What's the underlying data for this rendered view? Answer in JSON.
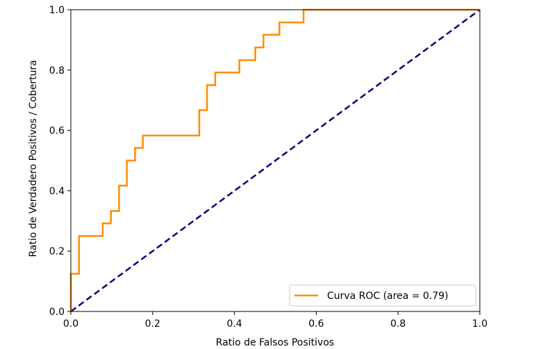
{
  "chart_data": {
    "type": "line",
    "xlabel": "Ratio de Falsos Positivos",
    "ylabel": "Ratio de Verdadero Positivos / Cobertura",
    "xlim": [
      0.0,
      1.0
    ],
    "ylim": [
      0.0,
      1.0
    ],
    "x_ticks": [
      "0.0",
      "0.2",
      "0.4",
      "0.6",
      "0.8",
      "1.0"
    ],
    "y_ticks": [
      "0.0",
      "0.2",
      "0.4",
      "0.6",
      "0.8",
      "1.0"
    ],
    "grid": false,
    "legend_position": "lower right",
    "series": [
      {
        "name": "Curva ROC (area = 0.79)",
        "color": "#ff8c00",
        "style": "solid",
        "x": [
          0.0,
          0.0,
          0.02,
          0.02,
          0.078,
          0.078,
          0.098,
          0.098,
          0.118,
          0.118,
          0.137,
          0.137,
          0.157,
          0.157,
          0.176,
          0.176,
          0.314,
          0.314,
          0.333,
          0.333,
          0.353,
          0.353,
          0.412,
          0.412,
          0.451,
          0.451,
          0.471,
          0.471,
          0.51,
          0.51,
          0.569,
          0.569,
          1.0
        ],
        "y": [
          0.0,
          0.125,
          0.125,
          0.25,
          0.25,
          0.292,
          0.292,
          0.333,
          0.333,
          0.417,
          0.417,
          0.5,
          0.5,
          0.542,
          0.542,
          0.583,
          0.583,
          0.667,
          0.667,
          0.75,
          0.75,
          0.792,
          0.792,
          0.833,
          0.833,
          0.875,
          0.875,
          0.917,
          0.917,
          0.958,
          0.958,
          1.0,
          1.0
        ]
      },
      {
        "name": "",
        "color": "#000080",
        "style": "dashed",
        "x": [
          0.0,
          1.0
        ],
        "y": [
          0.0,
          1.0
        ]
      }
    ]
  }
}
